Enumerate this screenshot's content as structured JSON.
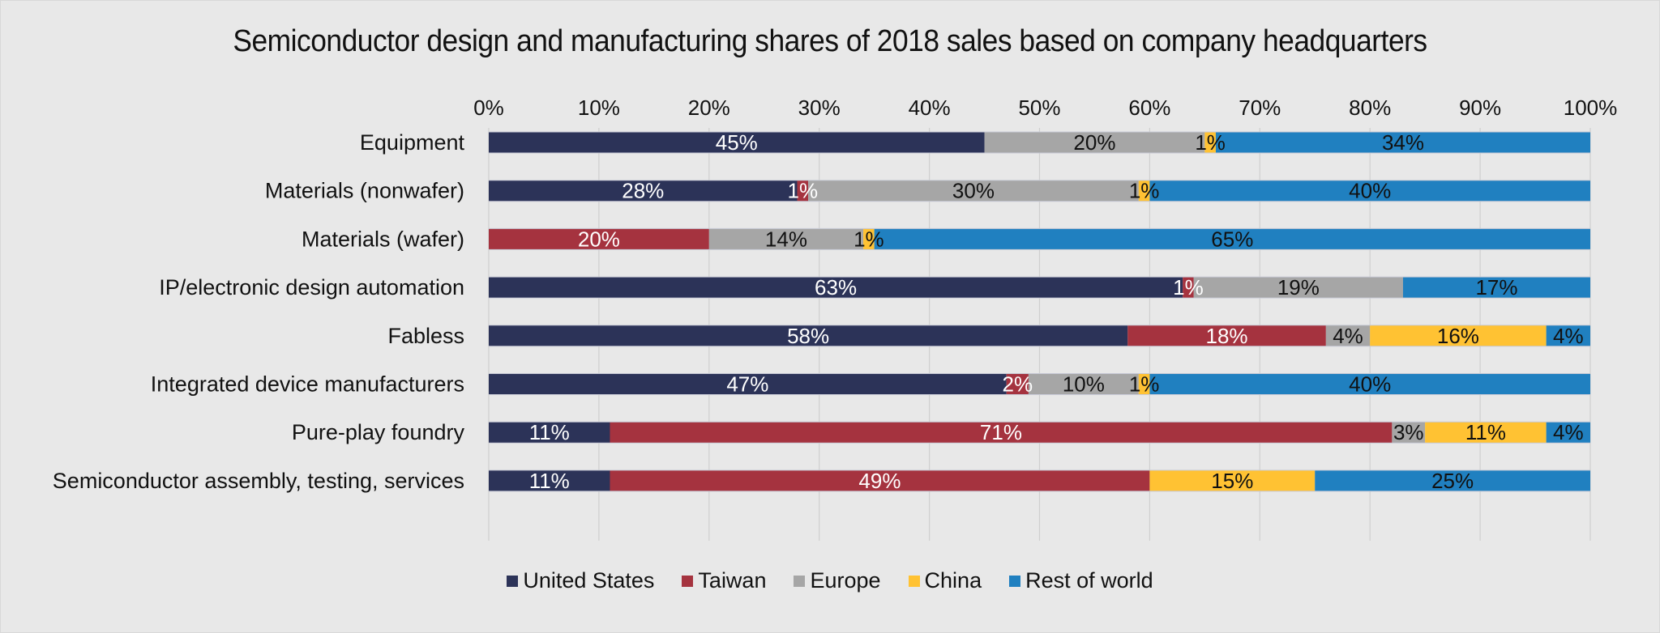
{
  "chart_data": {
    "type": "bar",
    "orientation": "horizontal",
    "stacked": true,
    "percent": true,
    "title": "Semiconductor design and manufacturing shares of 2018 sales based on company headquarters",
    "xlabel": "",
    "ylabel": "",
    "xlim": [
      0,
      100
    ],
    "x_ticks": [
      "0%",
      "10%",
      "20%",
      "30%",
      "40%",
      "50%",
      "60%",
      "70%",
      "80%",
      "90%",
      "100%"
    ],
    "x_axis_position": "top",
    "grid": true,
    "legend_position": "bottom",
    "categories": [
      "Equipment",
      "Materials (nonwafer)",
      "Materials (wafer)",
      "IP/electronic design automation",
      "Fabless",
      "Integrated device manufacturers",
      "Pure-play foundry",
      "Semiconductor assembly, testing, services"
    ],
    "series": [
      {
        "name": "United States",
        "color": "#2c3358",
        "label_color": "#ffffff",
        "values": [
          45,
          28,
          0,
          63,
          58,
          47,
          11,
          11
        ]
      },
      {
        "name": "Taiwan",
        "color": "#a5333f",
        "label_color": "#ffffff",
        "values": [
          0,
          1,
          20,
          1,
          18,
          2,
          71,
          49
        ]
      },
      {
        "name": "Europe",
        "color": "#a6a6a6",
        "label_color": "#111111",
        "values": [
          20,
          30,
          14,
          19,
          4,
          10,
          3,
          0
        ]
      },
      {
        "name": "China",
        "color": "#ffc233",
        "label_color": "#111111",
        "values": [
          1,
          1,
          1,
          0,
          16,
          1,
          11,
          15
        ]
      },
      {
        "name": "Rest of world",
        "color": "#2080c0",
        "label_color": "#111111",
        "values": [
          34,
          40,
          65,
          17,
          4,
          40,
          4,
          25
        ]
      }
    ],
    "data_labels": true,
    "label_format": "{v}%"
  }
}
